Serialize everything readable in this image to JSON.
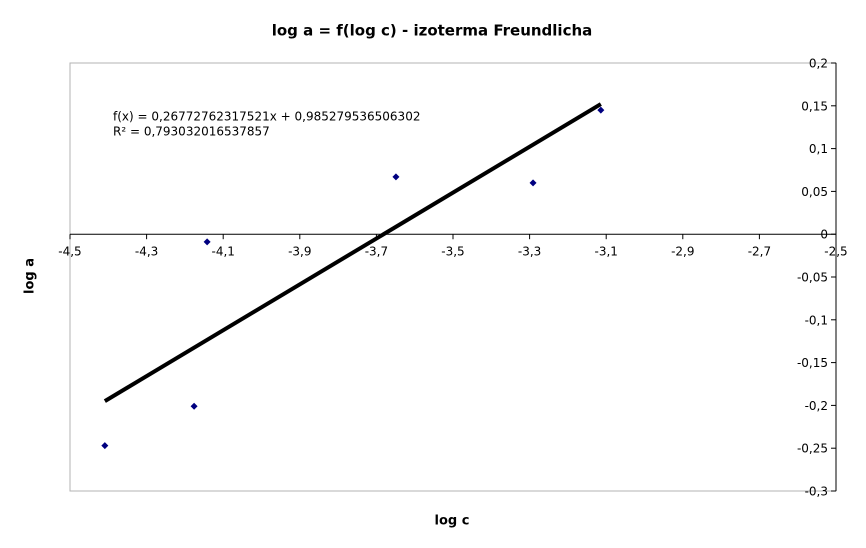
{
  "chart_data": {
    "type": "scatter",
    "title": "log a = f(log c) - izoterma Freundlicha",
    "x_label": "log c",
    "y_label": "log a",
    "x": [
      -4.409,
      -4.176,
      -4.142,
      -3.649,
      -3.291,
      -3.114
    ],
    "series": [
      {
        "color": "#000080",
        "values": [
          -0.247,
          -0.201,
          -0.009,
          0.067,
          0.06,
          0.145
        ]
      }
    ],
    "trendline": {
      "color": "#000000",
      "x": [
        -4.409,
        -3.114
      ],
      "values": [
        -0.195,
        0.152
      ],
      "equation": "f(x) = 0,26772762317521x + 0,985279536506302",
      "r_squared": "R² = 0,793032016537857"
    },
    "xlim": [
      -4.5,
      -2.5
    ],
    "ylim": [
      -0.3,
      0.2
    ],
    "xticks": [
      {
        "value": -4.5,
        "label": "-4,5"
      },
      {
        "value": -4.3,
        "label": "-4,3"
      },
      {
        "value": -4.1,
        "label": "-4,1"
      },
      {
        "value": -3.9,
        "label": "-3,9"
      },
      {
        "value": -3.7,
        "label": "-3,7"
      },
      {
        "value": -3.5,
        "label": "-3,5"
      },
      {
        "value": -3.3,
        "label": "-3,3"
      },
      {
        "value": -3.1,
        "label": "-3,1"
      },
      {
        "value": -2.9,
        "label": "-2,9"
      },
      {
        "value": -2.7,
        "label": "-2,7"
      },
      {
        "value": -2.5,
        "label": "-2,5"
      }
    ],
    "yticks": [
      {
        "value": 0.2,
        "label": "0,2"
      },
      {
        "value": 0.15,
        "label": "0,15"
      },
      {
        "value": 0.1,
        "label": "0,1"
      },
      {
        "value": 0.05,
        "label": "0,05"
      },
      0,
      {
        "value": -0.05,
        "label": "-0,05"
      },
      {
        "value": -0.1,
        "label": "-0,1"
      },
      {
        "value": -0.15,
        "label": "-0,15"
      },
      {
        "value": -0.2,
        "label": "-0,2"
      },
      {
        "value": -0.25,
        "label": "-0,25"
      },
      {
        "value": -0.3,
        "label": "-0,3"
      }
    ]
  }
}
